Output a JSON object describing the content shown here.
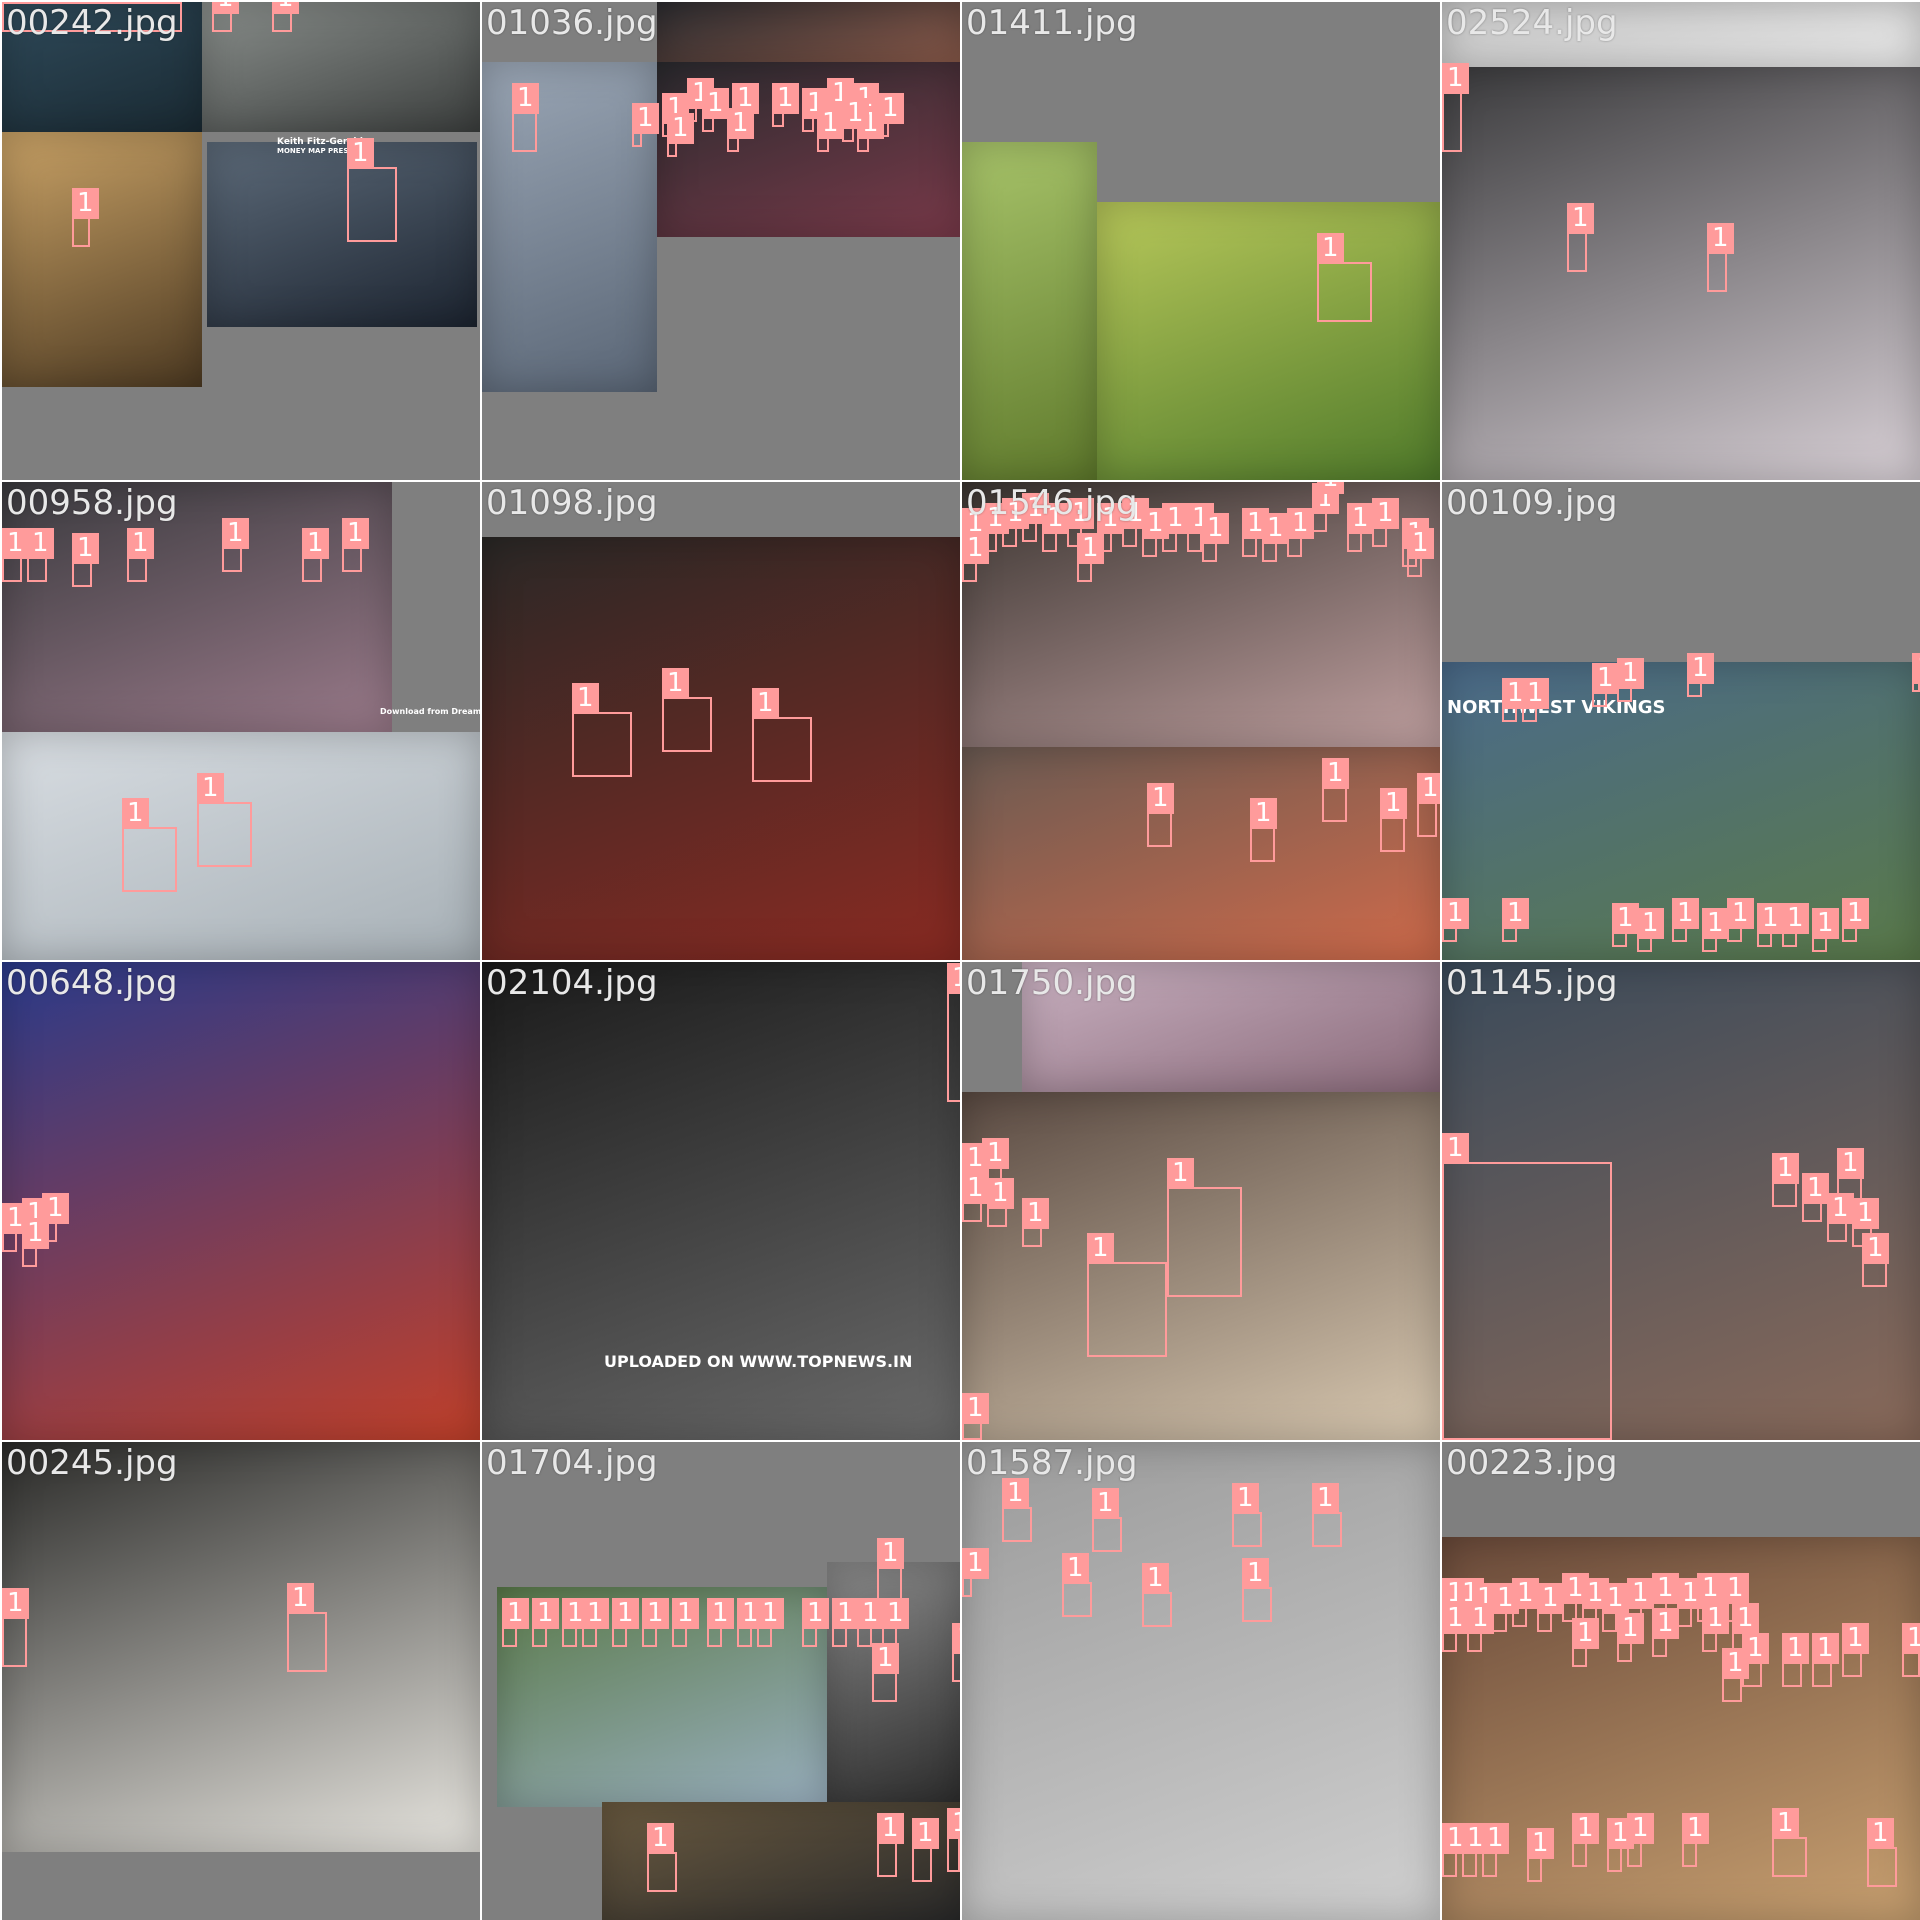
{
  "canvas_title": "",
  "box_label": "1",
  "colors": {
    "background": "#7f7f7f",
    "box": "#ff9b9b",
    "filename_text": "#e8e8e8"
  },
  "tiles": [
    {
      "filename": "00242.jpg"
    },
    {
      "filename": "01036.jpg"
    },
    {
      "filename": "01411.jpg"
    },
    {
      "filename": "02524.jpg"
    },
    {
      "filename": "00958.jpg"
    },
    {
      "filename": "01098.jpg"
    },
    {
      "filename": "01546.jpg"
    },
    {
      "filename": "00109.jpg"
    },
    {
      "filename": "00648.jpg"
    },
    {
      "filename": "02104.jpg"
    },
    {
      "filename": "01750.jpg"
    },
    {
      "filename": "01145.jpg"
    },
    {
      "filename": "00245.jpg"
    },
    {
      "filename": "01704.jpg"
    },
    {
      "filename": "01587.jpg"
    },
    {
      "filename": "00223.jpg"
    }
  ],
  "overlay_texts": {
    "tv_caption": "Keith Fitz-Gerald",
    "tv_subcaption": "MONEY MAP PRESS",
    "watermark": "UPLOADED ON WWW.TOPNEWS.IN",
    "banner": "NORTHWEST VIKINGS",
    "stock_watermark": "Download from Dreamstime.com"
  }
}
